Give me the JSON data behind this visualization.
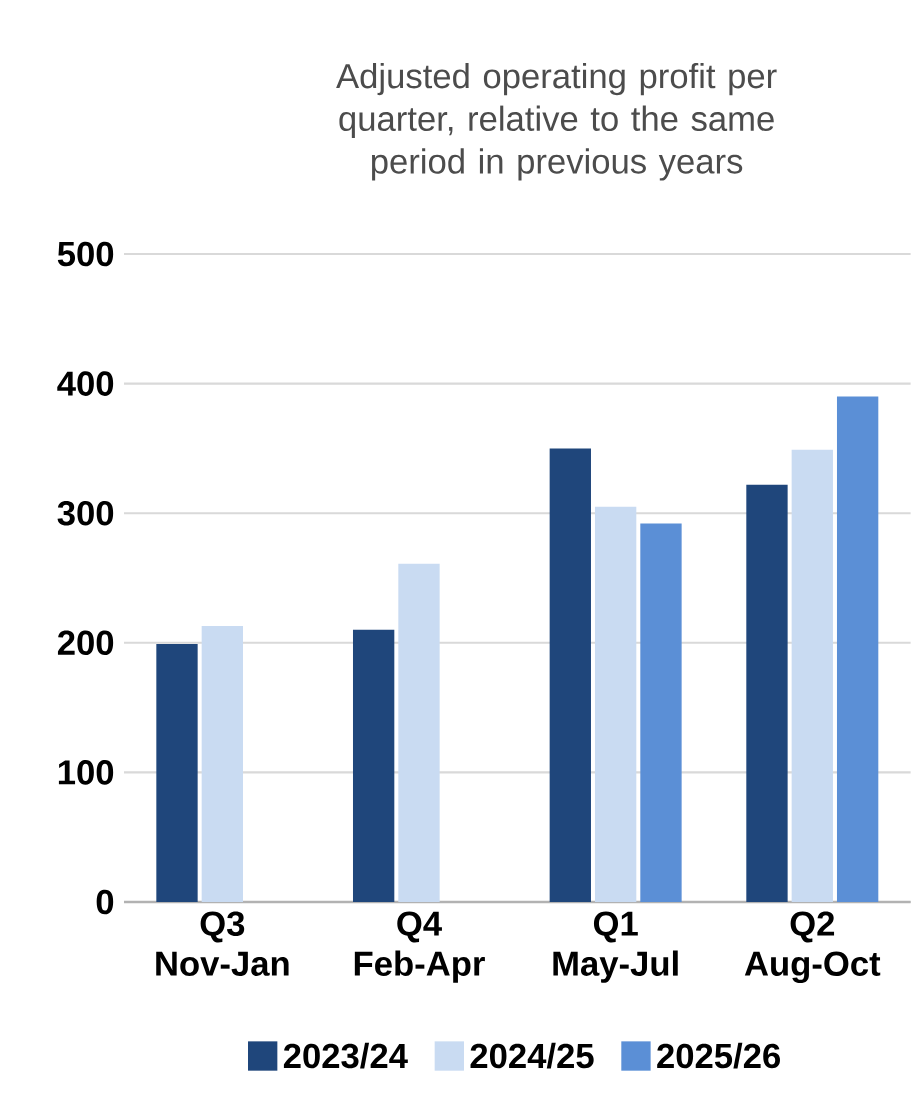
{
  "chart_data": {
    "type": "bar",
    "title": "Adjusted operating profit per quarter, relative to the same period in previous years",
    "categories": [
      "Q3 Nov-Jan",
      "Q4 Feb-Apr",
      "Q1 May-Jul",
      "Q2 Aug-Oct"
    ],
    "series": [
      {
        "name": "2023/24",
        "color": "#1f467b",
        "values": [
          199,
          210,
          350,
          322
        ]
      },
      {
        "name": "2024/25",
        "color": "#c9dbf2",
        "values": [
          213,
          261,
          305,
          349
        ]
      },
      {
        "name": "2025/26",
        "color": "#5b8fd6",
        "values": [
          null,
          null,
          292,
          390
        ]
      }
    ],
    "ylim": [
      0,
      500
    ],
    "yticks": [
      0,
      100,
      200,
      300,
      400,
      500
    ],
    "grid": "y",
    "legend": "bottom"
  }
}
